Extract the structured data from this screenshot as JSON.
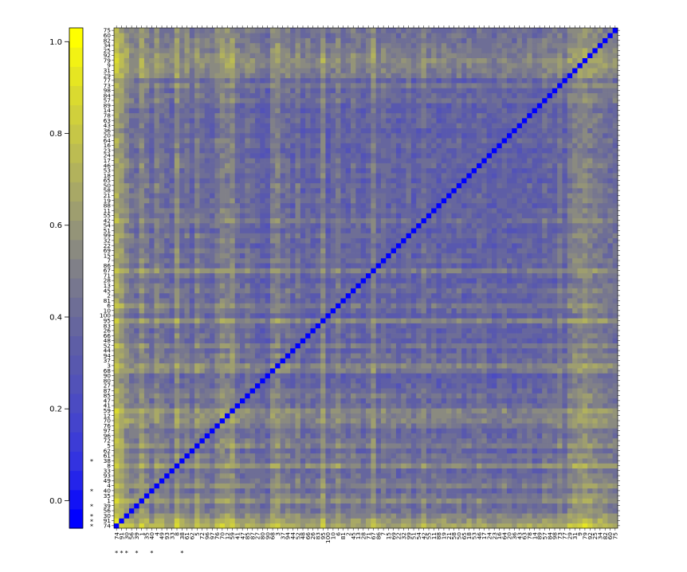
{
  "chart_data": {
    "type": "heatmap",
    "title": "",
    "xlabel": "",
    "ylabel": "",
    "description_labels": "row/column labels of the symmetric matrix, ordered bottom-to-top on the y axis and left-to-right on the x axis",
    "labels": [
      "74",
      "91",
      "30",
      "56",
      "39",
      "1",
      "35",
      "40",
      "4",
      "49",
      "93",
      "33",
      "8",
      "38",
      "61",
      "62",
      "5",
      "72",
      "96",
      "97",
      "76",
      "70",
      "12",
      "59",
      "41",
      "47",
      "85",
      "87",
      "27",
      "80",
      "90",
      "68",
      "3",
      "37",
      "94",
      "44",
      "52",
      "48",
      "66",
      "26",
      "83",
      "95",
      "100",
      "10",
      "6",
      "81",
      "2",
      "45",
      "13",
      "28",
      "71",
      "67",
      "86",
      "7",
      "15",
      "69",
      "22",
      "32",
      "99",
      "51",
      "54",
      "42",
      "55",
      "11",
      "88",
      "19",
      "21",
      "58",
      "50",
      "65",
      "18",
      "53",
      "46",
      "17",
      "24",
      "23",
      "16",
      "64",
      "20",
      "36",
      "43",
      "63",
      "78",
      "14",
      "89",
      "57",
      "84",
      "98",
      "73",
      "77",
      "29",
      "31",
      "9",
      "79",
      "92",
      "25",
      "34",
      "82",
      "60",
      "75"
    ],
    "starred_labels": [
      0,
      1,
      2,
      4,
      7,
      13
    ],
    "colorbar": {
      "ticks": [
        0.0,
        0.2,
        0.4,
        0.6,
        0.8,
        1.0
      ],
      "tick_labels": [
        "0.0",
        "0.2",
        "0.4",
        "0.6",
        "0.8",
        "1.0"
      ],
      "range": [
        -0.06,
        1.03
      ],
      "colors": [
        "#0000ff",
        "#1212f5",
        "#2424ea",
        "#3333e0",
        "#3c3cd6",
        "#4444cc",
        "#4b4bc2",
        "#5252b8",
        "#5858ae",
        "#5e5ea6",
        "#66669e",
        "#6e6e96",
        "#77778f",
        "#808088",
        "#8a8a80",
        "#949478",
        "#9e9e6f",
        "#a8a866",
        "#b2b25c",
        "#bcbc52",
        "#c6c647",
        "#d0d03c",
        "#dada30",
        "#e6e622",
        "#f2f214",
        "#ffff00"
      ]
    },
    "column_profile": [
      0.98,
      0.82,
      0.66,
      0.52,
      0.48,
      0.7,
      0.55,
      0.4,
      0.62,
      0.5,
      0.44,
      0.38,
      0.72,
      0.46,
      0.52,
      0.36,
      0.6,
      0.48,
      0.42,
      0.4,
      0.55,
      0.66,
      0.62,
      0.7,
      0.45,
      0.38,
      0.5,
      0.42,
      0.36,
      0.34,
      0.3,
      0.58,
      0.64,
      0.44,
      0.48,
      0.36,
      0.52,
      0.32,
      0.4,
      0.34,
      0.38,
      0.66,
      0.3,
      0.4,
      0.54,
      0.36,
      0.34,
      0.46,
      0.4,
      0.3,
      0.38,
      0.62,
      0.34,
      0.44,
      0.36,
      0.4,
      0.32,
      0.38,
      0.42,
      0.3,
      0.36,
      0.5,
      0.34,
      0.4,
      0.32,
      0.38,
      0.36,
      0.34,
      0.4,
      0.3,
      0.36,
      0.34,
      0.42,
      0.38,
      0.32,
      0.3,
      0.36,
      0.4,
      0.32,
      0.3,
      0.36,
      0.34,
      0.38,
      0.3,
      0.32,
      0.44,
      0.4,
      0.36,
      0.52,
      0.34,
      0.58,
      0.62,
      0.66,
      0.7,
      0.64,
      0.6,
      0.56,
      0.52,
      0.5,
      0.48
    ]
  }
}
